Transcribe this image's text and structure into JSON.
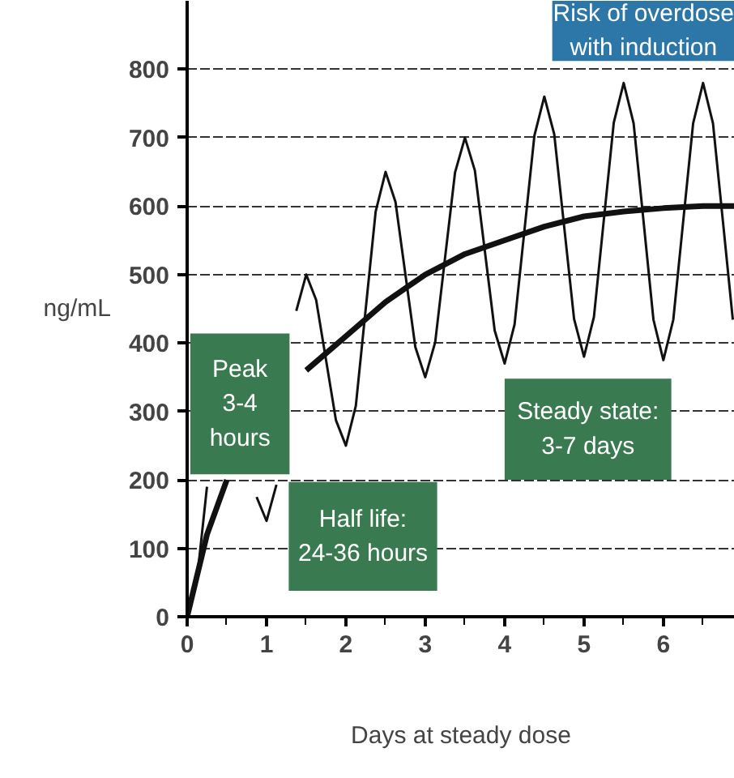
{
  "chart_data": {
    "type": "line",
    "xlabel": "Days at steady dose",
    "ylabel": "ng/mL",
    "xlim": [
      0,
      6.9
    ],
    "ylim": [
      0,
      900
    ],
    "xticks": [
      0,
      1,
      2,
      3,
      4,
      5,
      6
    ],
    "yticks": [
      0,
      100,
      200,
      300,
      400,
      500,
      600,
      700,
      800
    ],
    "grid": "y",
    "series": [
      {
        "color": "#111111",
        "x": [
          0,
          0.125,
          0.25,
          0.375,
          0.5,
          0.625,
          0.75,
          0.875,
          1.0,
          1.125,
          1.25,
          1.375,
          1.5,
          1.625,
          1.75,
          1.875,
          2.0,
          2.125,
          2.25,
          2.375,
          2.5,
          2.625,
          2.75,
          2.875,
          3.0,
          3.125,
          3.25,
          3.375,
          3.5,
          3.625,
          3.75,
          3.875,
          4.0,
          4.125,
          4.25,
          4.375,
          4.5,
          4.625,
          4.75,
          4.875,
          5.0,
          5.125,
          5.25,
          5.375,
          5.5,
          5.625,
          5.75,
          5.875,
          6.0,
          6.125,
          6.25,
          6.375,
          6.5,
          6.625,
          6.75,
          6.875
        ],
        "values": [
          0,
          55,
          190,
          null,
          null,
          null,
          null,
          175,
          140,
          193,
          null,
          447,
          500,
          463,
          375,
          287,
          250,
          308,
          450,
          592,
          650,
          606,
          500,
          394,
          350,
          401,
          525,
          649,
          700,
          652,
          535,
          418,
          370,
          427,
          565,
          703,
          760,
          705,
          570,
          435,
          380,
          438,
          580,
          722,
          780,
          721,
          578,
          434,
          375,
          434,
          578,
          721,
          780,
          721,
          578,
          434
        ]
      },
      {
        "color": "#111111",
        "x": [
          0,
          0.25,
          0.5,
          0.75,
          1.0,
          1.5,
          2.0,
          2.5,
          3.0,
          3.5,
          4.0,
          4.5,
          5.0,
          5.5,
          6.0,
          6.5,
          6.9
        ],
        "values": [
          0,
          120,
          200,
          null,
          null,
          360,
          410,
          460,
          500,
          530,
          550,
          570,
          585,
          592,
          597,
          600,
          600
        ]
      }
    ],
    "annotations": [
      "Peak\n3-4\nhours",
      "Half life:\n24-36 hours",
      "Steady state:\n3-7 days",
      "Risk of overdose\nwith induction"
    ]
  }
}
